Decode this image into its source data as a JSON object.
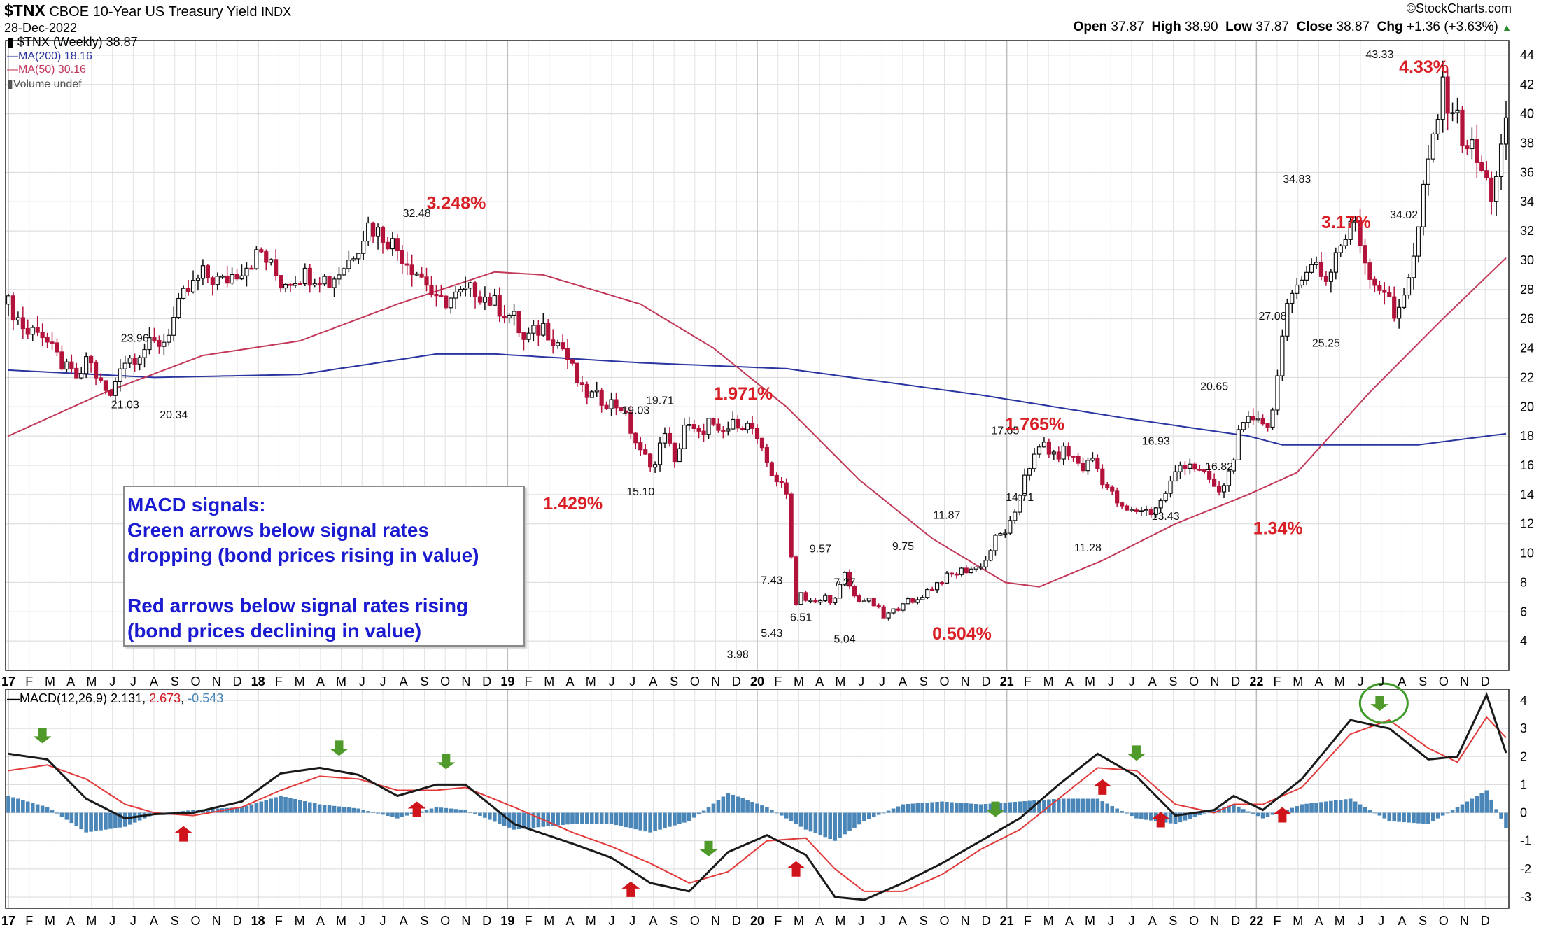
{
  "header": {
    "symbol": "$TNX",
    "name": "CBOE 10-Year US Treasury Yield",
    "exchange": "INDX",
    "date": "28-Dec-2022",
    "brand": "©StockCharts.com",
    "open_label": "Open",
    "open": "37.87",
    "high_label": "High",
    "high": "38.90",
    "low_label": "Low",
    "low": "37.87",
    "close_label": "Close",
    "close": "38.87",
    "chg_label": "Chg",
    "chg": "+1.36 (+3.63%)"
  },
  "legend": {
    "price": "$TNX (Weekly) 38.87",
    "ma200": "MA(200) 18.16",
    "ma50": "MA(50) 30.16",
    "volume": "Volume undef",
    "macd_label": "MACD(12,26,9)",
    "macd_value": "2.131",
    "macd_signal": "2.673",
    "macd_hist": "-0.543"
  },
  "callout": {
    "line1": "MACD signals:",
    "line2": "Green arrows below signal rates",
    "line3": "dropping (bond prices rising in value)",
    "line4": "Red arrows below signal rates rising",
    "line5": "(bond prices declining in value)"
  },
  "colors": {
    "ma200": "#2a35a0",
    "ma50": "#c2395a",
    "up_candle": "#111111",
    "down_candle": "#b3123b",
    "macd": "#1a1a1a",
    "signal": "#e23a3a",
    "histogram": "#4a86b8",
    "annotation_red": "#d91f26",
    "callout_text": "#1a1ad0",
    "buy_arrow": "#4f9a2a",
    "sell_arrow": "#d0141c"
  },
  "chart_data": {
    "type": "candlestick",
    "price_axis": {
      "ticks": [
        "4",
        "6",
        "8",
        "10",
        "12",
        "14",
        "16",
        "18",
        "20",
        "22",
        "24",
        "26",
        "28",
        "30",
        "32",
        "34",
        "36",
        "38",
        "40",
        "42",
        "44"
      ],
      "range": [
        2,
        45
      ]
    },
    "macd_axis": {
      "ticks": [
        "4",
        "3",
        "2",
        "1",
        "0",
        "-1",
        "-2",
        "-3"
      ],
      "range": [
        -3.4,
        4.4
      ]
    },
    "time_axis": {
      "labels": [
        "17",
        "F",
        "M",
        "A",
        "M",
        "J",
        "J",
        "A",
        "S",
        "O",
        "N",
        "D",
        "18",
        "F",
        "M",
        "A",
        "M",
        "J",
        "J",
        "A",
        "S",
        "O",
        "N",
        "D",
        "19",
        "F",
        "M",
        "A",
        "M",
        "J",
        "J",
        "A",
        "S",
        "O",
        "N",
        "D",
        "20",
        "F",
        "M",
        "A",
        "M",
        "J",
        "J",
        "A",
        "S",
        "O",
        "N",
        "D",
        "21",
        "F",
        "M",
        "A",
        "M",
        "J",
        "J",
        "A",
        "S",
        "O",
        "N",
        "D",
        "22",
        "F",
        "M",
        "A",
        "M",
        "J",
        "J",
        "A",
        "S",
        "O",
        "N",
        "D"
      ],
      "start": "2017-01",
      "months": 72
    },
    "price_series": [
      [
        0,
        27.0
      ],
      [
        2,
        26.0
      ],
      [
        4,
        25.0
      ],
      [
        6,
        25.5
      ],
      [
        9,
        23.8
      ],
      [
        12,
        22.5
      ],
      [
        15,
        21.8
      ],
      [
        16,
        23.5
      ],
      [
        19,
        21.5
      ],
      [
        21,
        20.6
      ],
      [
        23,
        23.0
      ],
      [
        26,
        23.5
      ],
      [
        28,
        24.0
      ],
      [
        32,
        24.5
      ],
      [
        36,
        27.5
      ],
      [
        40,
        29.0
      ],
      [
        44,
        28.5
      ],
      [
        48,
        29.5
      ],
      [
        52,
        30.5
      ],
      [
        56,
        28.5
      ],
      [
        60,
        29.0
      ],
      [
        64,
        29.0
      ],
      [
        66,
        28.5
      ],
      [
        70,
        30.0
      ],
      [
        74,
        32.4
      ],
      [
        78,
        31.5
      ],
      [
        82,
        30.0
      ],
      [
        86,
        28.5
      ],
      [
        88,
        27.0
      ],
      [
        92,
        27.5
      ],
      [
        96,
        28.0
      ],
      [
        100,
        27.0
      ],
      [
        104,
        26.0
      ],
      [
        106,
        24.5
      ],
      [
        110,
        25.5
      ],
      [
        114,
        24.0
      ],
      [
        118,
        21.0
      ],
      [
        122,
        20.5
      ],
      [
        126,
        20.0
      ],
      [
        130,
        16.8
      ],
      [
        133,
        16.0
      ],
      [
        135,
        18.5
      ],
      [
        137,
        16.0
      ],
      [
        139,
        18.8
      ],
      [
        142,
        18.0
      ],
      [
        144,
        19.0
      ],
      [
        146,
        18.0
      ],
      [
        150,
        19.0
      ],
      [
        153,
        18.5
      ],
      [
        154,
        17.5
      ],
      [
        157,
        15.5
      ],
      [
        160,
        14.0
      ],
      [
        161,
        10.0
      ],
      [
        162,
        6.5
      ],
      [
        163,
        7.5
      ],
      [
        164,
        6.8
      ],
      [
        166,
        6.5
      ],
      [
        168,
        7.0
      ],
      [
        170,
        6.8
      ],
      [
        172,
        8.5
      ],
      [
        174,
        7.0
      ],
      [
        176,
        6.8
      ],
      [
        178,
        6.5
      ],
      [
        180,
        5.6
      ],
      [
        182,
        6.0
      ],
      [
        184,
        6.8
      ],
      [
        186,
        6.5
      ],
      [
        188,
        7.2
      ],
      [
        192,
        8.2
      ],
      [
        196,
        8.8
      ],
      [
        199,
        9.0
      ],
      [
        201,
        9.5
      ],
      [
        203,
        11.0
      ],
      [
        205,
        11.5
      ],
      [
        207,
        12.5
      ],
      [
        209,
        15.5
      ],
      [
        211,
        16.5
      ],
      [
        213,
        17.5
      ],
      [
        215,
        16.5
      ],
      [
        217,
        17.0
      ],
      [
        219,
        16.5
      ],
      [
        221,
        15.8
      ],
      [
        223,
        16.5
      ],
      [
        225,
        15.0
      ],
      [
        227,
        14.0
      ],
      [
        229,
        13.0
      ],
      [
        231,
        12.8
      ],
      [
        233,
        13.0
      ],
      [
        235,
        12.8
      ],
      [
        237,
        13.5
      ],
      [
        239,
        14.8
      ],
      [
        241,
        16.0
      ],
      [
        243,
        16.2
      ],
      [
        245,
        15.5
      ],
      [
        247,
        15.0
      ],
      [
        249,
        14.0
      ],
      [
        251,
        15.5
      ],
      [
        253,
        18.0
      ],
      [
        255,
        19.0
      ],
      [
        257,
        19.5
      ],
      [
        259,
        18.5
      ],
      [
        261,
        22.0
      ],
      [
        263,
        26.5
      ],
      [
        265,
        29.0
      ],
      [
        267,
        29.0
      ],
      [
        269,
        30.0
      ],
      [
        271,
        28.5
      ],
      [
        273,
        30.5
      ],
      [
        275,
        31.5
      ],
      [
        277,
        32.8
      ],
      [
        279,
        30.0
      ],
      [
        281,
        28.5
      ],
      [
        283,
        28.0
      ],
      [
        285,
        26.0
      ],
      [
        287,
        28.0
      ],
      [
        289,
        30.0
      ],
      [
        291,
        34.5
      ],
      [
        293,
        38.5
      ],
      [
        295,
        41.5
      ],
      [
        297,
        40.5
      ],
      [
        299,
        38.5
      ],
      [
        301,
        37.5
      ],
      [
        303,
        36.0
      ],
      [
        305,
        34.5
      ],
      [
        307,
        37.5
      ],
      [
        308,
        38.87
      ]
    ],
    "ma200_series": [
      [
        0,
        22.5
      ],
      [
        30,
        22.0
      ],
      [
        60,
        22.2
      ],
      [
        88,
        23.6
      ],
      [
        100,
        23.6
      ],
      [
        130,
        23.0
      ],
      [
        160,
        22.6
      ],
      [
        200,
        20.8
      ],
      [
        230,
        19.2
      ],
      [
        255,
        18.0
      ],
      [
        262,
        17.4
      ],
      [
        290,
        17.4
      ],
      [
        308,
        18.16
      ]
    ],
    "ma50_series": [
      [
        0,
        18.0
      ],
      [
        20,
        21.0
      ],
      [
        40,
        23.5
      ],
      [
        60,
        24.5
      ],
      [
        80,
        27.0
      ],
      [
        100,
        29.2
      ],
      [
        110,
        29.0
      ],
      [
        130,
        27.0
      ],
      [
        145,
        24.0
      ],
      [
        160,
        20.0
      ],
      [
        175,
        15.0
      ],
      [
        190,
        11.0
      ],
      [
        205,
        8.0
      ],
      [
        212,
        7.7
      ],
      [
        225,
        9.5
      ],
      [
        240,
        12.0
      ],
      [
        255,
        14.0
      ],
      [
        265,
        15.5
      ],
      [
        280,
        21.0
      ],
      [
        295,
        26.0
      ],
      [
        308,
        30.16
      ]
    ],
    "macd_series": [
      [
        0,
        2.1
      ],
      [
        8,
        1.9
      ],
      [
        16,
        0.5
      ],
      [
        24,
        -0.2
      ],
      [
        30,
        -0.05
      ],
      [
        38,
        0.0
      ],
      [
        48,
        0.4
      ],
      [
        56,
        1.4
      ],
      [
        64,
        1.6
      ],
      [
        72,
        1.35
      ],
      [
        80,
        0.6
      ],
      [
        88,
        1.0
      ],
      [
        94,
        1.0
      ],
      [
        104,
        -0.4
      ],
      [
        116,
        -1.1
      ],
      [
        124,
        -1.6
      ],
      [
        132,
        -2.5
      ],
      [
        140,
        -2.8
      ],
      [
        148,
        -1.4
      ],
      [
        156,
        -0.8
      ],
      [
        164,
        -1.5
      ],
      [
        170,
        -3.0
      ],
      [
        176,
        -3.1
      ],
      [
        184,
        -2.5
      ],
      [
        192,
        -1.8
      ],
      [
        200,
        -1.0
      ],
      [
        208,
        -0.2
      ],
      [
        216,
        1.0
      ],
      [
        224,
        2.1
      ],
      [
        232,
        1.3
      ],
      [
        240,
        -0.1
      ],
      [
        248,
        0.1
      ],
      [
        252,
        0.6
      ],
      [
        258,
        0.1
      ],
      [
        266,
        1.2
      ],
      [
        276,
        3.3
      ],
      [
        284,
        3.0
      ],
      [
        292,
        1.9
      ],
      [
        298,
        2.0
      ],
      [
        304,
        4.2
      ],
      [
        308,
        2.131
      ]
    ],
    "signal_series": [
      [
        0,
        1.5
      ],
      [
        8,
        1.7
      ],
      [
        16,
        1.2
      ],
      [
        24,
        0.3
      ],
      [
        30,
        0.0
      ],
      [
        38,
        -0.1
      ],
      [
        48,
        0.2
      ],
      [
        56,
        0.8
      ],
      [
        64,
        1.3
      ],
      [
        72,
        1.2
      ],
      [
        80,
        0.8
      ],
      [
        88,
        0.8
      ],
      [
        94,
        0.9
      ],
      [
        104,
        0.2
      ],
      [
        116,
        -0.7
      ],
      [
        124,
        -1.2
      ],
      [
        132,
        -1.8
      ],
      [
        140,
        -2.5
      ],
      [
        148,
        -2.1
      ],
      [
        156,
        -1.0
      ],
      [
        164,
        -0.9
      ],
      [
        170,
        -2.0
      ],
      [
        176,
        -2.8
      ],
      [
        184,
        -2.8
      ],
      [
        192,
        -2.2
      ],
      [
        200,
        -1.3
      ],
      [
        208,
        -0.6
      ],
      [
        216,
        0.5
      ],
      [
        224,
        1.6
      ],
      [
        232,
        1.5
      ],
      [
        240,
        0.3
      ],
      [
        248,
        0.0
      ],
      [
        252,
        0.3
      ],
      [
        258,
        0.3
      ],
      [
        266,
        0.9
      ],
      [
        276,
        2.8
      ],
      [
        284,
        3.3
      ],
      [
        292,
        2.3
      ],
      [
        298,
        1.8
      ],
      [
        304,
        3.4
      ],
      [
        308,
        2.673
      ]
    ],
    "annotations": [
      {
        "text": "3.248%",
        "week": 86,
        "price": 33.5
      },
      {
        "text": "1.429%",
        "week": 110,
        "price": 13.0
      },
      {
        "text": "1.971%",
        "week": 145,
        "price": 20.5
      },
      {
        "text": "0.504%",
        "week": 190,
        "price": 4.1
      },
      {
        "text": "1.765%",
        "week": 205,
        "price": 18.4
      },
      {
        "text": "1.34%",
        "week": 256,
        "price": 11.3
      },
      {
        "text": "3.17%",
        "week": 270,
        "price": 32.2
      },
      {
        "text": "4.33%",
        "week": 286,
        "price": 42.8
      }
    ],
    "price_labels": [
      {
        "text": "23.96",
        "week": 26,
        "price": 23.96,
        "pos": "above"
      },
      {
        "text": "21.03",
        "week": 24,
        "price": 21.03,
        "pos": "below"
      },
      {
        "text": "20.34",
        "week": 34,
        "price": 20.34,
        "pos": "below"
      },
      {
        "text": "32.48",
        "week": 84,
        "price": 32.48,
        "pos": "above"
      },
      {
        "text": "19.03",
        "week": 129,
        "price": 19.03,
        "pos": "above"
      },
      {
        "text": "15.10",
        "week": 130,
        "price": 15.1,
        "pos": "below"
      },
      {
        "text": "19.71",
        "week": 134,
        "price": 19.71,
        "pos": "above"
      },
      {
        "text": "9.57",
        "week": 167,
        "price": 9.57,
        "pos": "above"
      },
      {
        "text": "7.43",
        "week": 157,
        "price": 7.43,
        "pos": "above"
      },
      {
        "text": "5.43",
        "week": 157,
        "price": 5.43,
        "pos": "below"
      },
      {
        "text": "6.51",
        "week": 163,
        "price": 6.51,
        "pos": "below"
      },
      {
        "text": "3.98",
        "week": 150,
        "price": 3.98,
        "pos": "below"
      },
      {
        "text": "7.27",
        "week": 172,
        "price": 7.27,
        "pos": "above"
      },
      {
        "text": "5.04",
        "week": 172,
        "price": 5.04,
        "pos": "below"
      },
      {
        "text": "9.75",
        "week": 184,
        "price": 9.75,
        "pos": "above"
      },
      {
        "text": "11.87",
        "week": 193,
        "price": 11.87,
        "pos": "above"
      },
      {
        "text": "17.65",
        "week": 205,
        "price": 17.65,
        "pos": "above"
      },
      {
        "text": "14.71",
        "week": 208,
        "price": 14.71,
        "pos": "below"
      },
      {
        "text": "11.28",
        "week": 222,
        "price": 11.28,
        "pos": "below"
      },
      {
        "text": "16.93",
        "week": 236,
        "price": 16.93,
        "pos": "above"
      },
      {
        "text": "13.43",
        "week": 238,
        "price": 13.43,
        "pos": "below"
      },
      {
        "text": "16.82",
        "week": 249,
        "price": 16.82,
        "pos": "below"
      },
      {
        "text": "20.65",
        "week": 248,
        "price": 20.65,
        "pos": "above"
      },
      {
        "text": "34.83",
        "week": 265,
        "price": 34.83,
        "pos": "above"
      },
      {
        "text": "27.08",
        "week": 260,
        "price": 27.08,
        "pos": "below"
      },
      {
        "text": "25.25",
        "week": 271,
        "price": 25.25,
        "pos": "below"
      },
      {
        "text": "43.33",
        "week": 282,
        "price": 43.33,
        "pos": "above"
      },
      {
        "text": "34.02",
        "week": 287,
        "price": 34.02,
        "pos": "below"
      }
    ],
    "buy_arrows_weeks": [
      7,
      68,
      90,
      144,
      203,
      232,
      282
    ],
    "sell_arrows_weeks": [
      36,
      84,
      128,
      162,
      225,
      237,
      262
    ],
    "circle_week": 282
  }
}
